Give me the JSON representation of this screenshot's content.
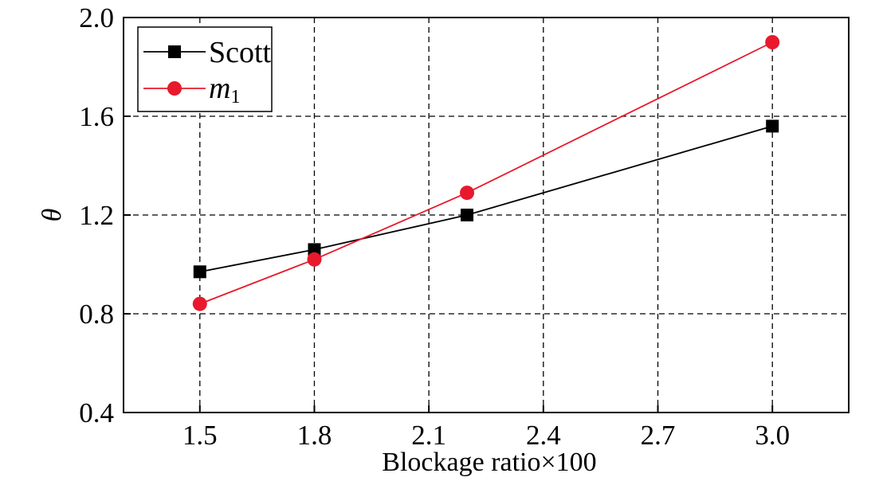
{
  "chart_data": {
    "type": "line",
    "title": "",
    "xlabel": "Blockage ratio×100",
    "ylabel": "θ",
    "xlim": [
      1.3,
      3.2
    ],
    "ylim": [
      0.4,
      2.0
    ],
    "xticks": [
      1.5,
      1.8,
      2.1,
      2.4,
      2.7,
      3.0
    ],
    "xtick_labels": [
      "1.5",
      "1.8",
      "2.1",
      "2.4",
      "2.7",
      "3.0"
    ],
    "yticks": [
      0.4,
      0.8,
      1.2,
      1.6,
      2.0
    ],
    "ytick_labels": [
      "0.4",
      "0.8",
      "1.2",
      "1.6",
      "2.0"
    ],
    "grid": true,
    "legend_position": "top-left",
    "series": [
      {
        "name": "Scott",
        "color": "#000000",
        "marker": "square",
        "x": [
          1.5,
          1.8,
          2.2,
          3.0
        ],
        "y": [
          0.97,
          1.06,
          1.2,
          1.56
        ]
      },
      {
        "name": "m1",
        "name_main": "m",
        "name_sub": "1",
        "color": "#e8192c",
        "marker": "circle",
        "x": [
          1.5,
          1.8,
          2.2,
          3.0
        ],
        "y": [
          0.84,
          1.02,
          1.29,
          1.9
        ]
      }
    ]
  }
}
